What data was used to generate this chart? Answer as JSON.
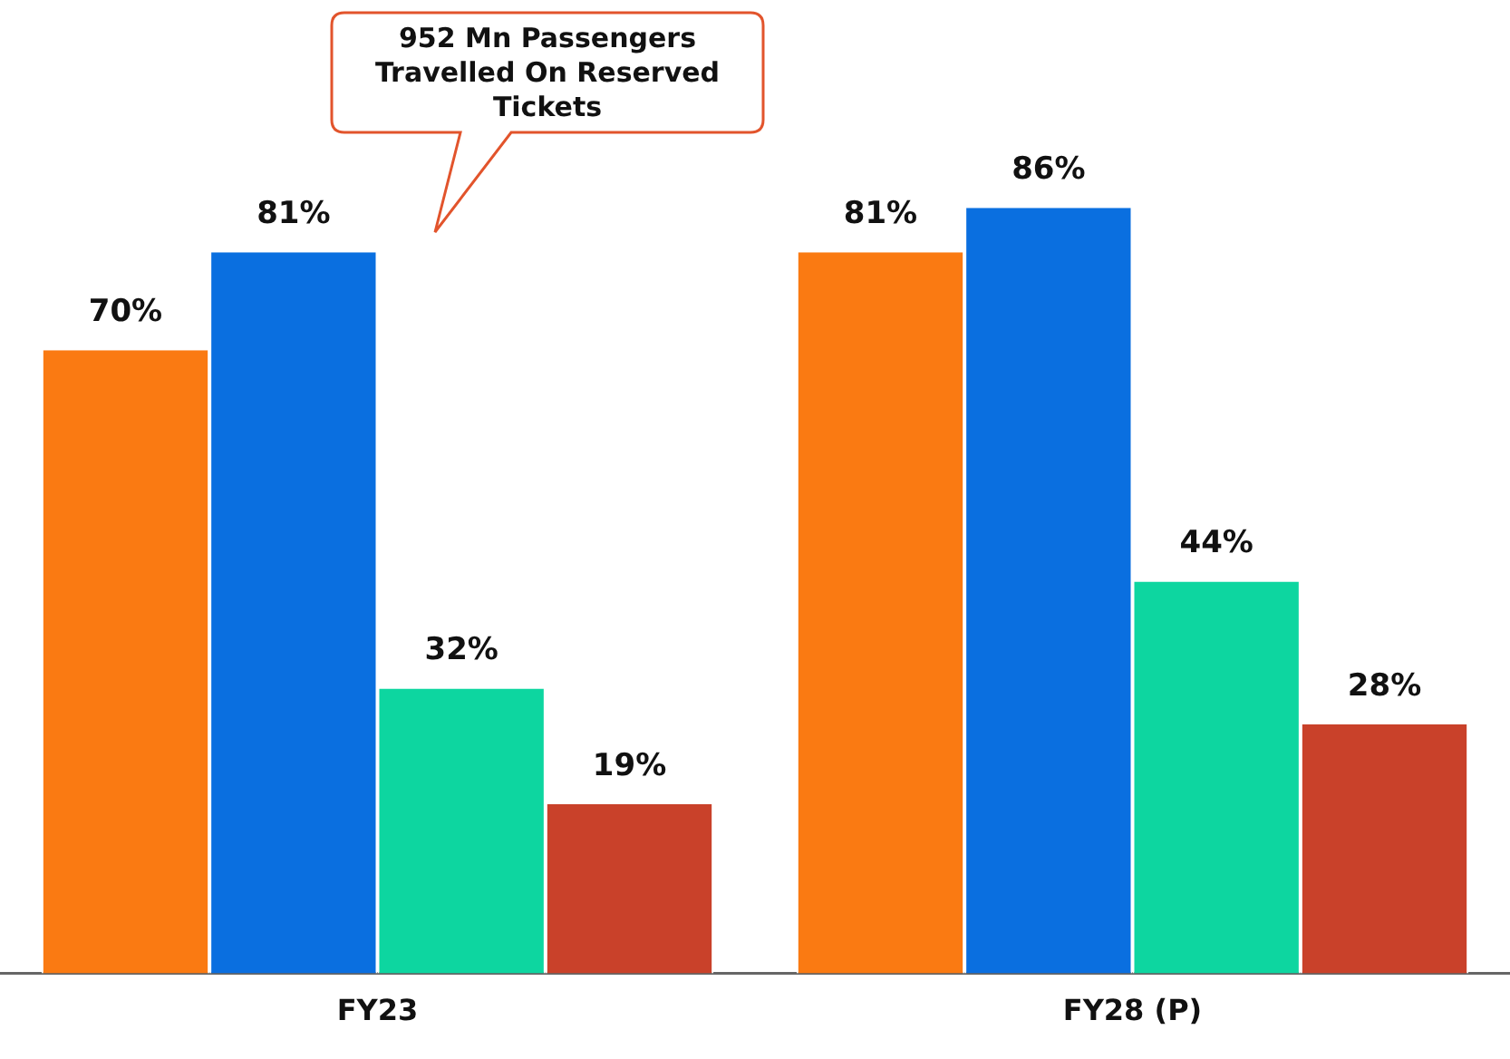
{
  "chart_data": {
    "type": "bar",
    "categories": [
      "FY23",
      "FY28 (P)"
    ],
    "series": [
      {
        "color": "#fa7a12",
        "values": [
          70,
          81
        ],
        "value_labels": [
          "70%",
          "81%"
        ]
      },
      {
        "color": "#0a6fe0",
        "values": [
          81,
          86
        ],
        "value_labels": [
          "81%",
          "86%"
        ]
      },
      {
        "color": "#0dd6a0",
        "values": [
          32,
          44
        ],
        "value_labels": [
          "32%",
          "44%"
        ]
      },
      {
        "color": "#c9412a",
        "values": [
          19,
          28
        ],
        "value_labels": [
          "19%",
          "28%"
        ]
      }
    ],
    "annotations": [
      "952 Mn Passengers Travelled On Reserved Tickets"
    ],
    "grid": false,
    "legend": false
  }
}
